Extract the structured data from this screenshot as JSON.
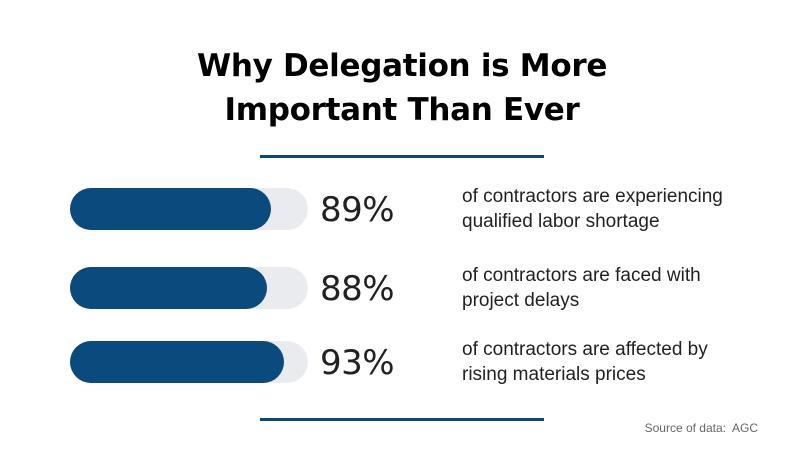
{
  "title": {
    "line1": "Why Delegation is More",
    "line2": "Important Than Ever"
  },
  "chart_data": {
    "type": "bar",
    "title": "Why Delegation is More Important Than Ever",
    "categories": [
      "of contractors are experiencing qualified labor shortage",
      "of contractors are faced with project delays",
      "of contractors are affected by rising materials prices"
    ],
    "values": [
      89,
      88,
      93
    ],
    "labels": [
      "89%",
      "88%",
      "93%"
    ],
    "ylim": [
      0,
      100
    ],
    "orientation": "horizontal",
    "grid": false
  },
  "stats": [
    {
      "value": 89,
      "label": "89%",
      "line1": "of contractors are experiencing",
      "line2": "qualified labor shortage"
    },
    {
      "value": 88,
      "label": "88%",
      "line1": "of contractors are faced with",
      "line2": "project delays"
    },
    {
      "value": 93,
      "label": "93%",
      "line1": "of contractors are affected by",
      "line2": "rising materials prices"
    }
  ],
  "source": "Source of data:  AGC",
  "colors": {
    "bar_fill": "#0a4a7d",
    "bar_track": "#e9ebee",
    "rule": "#0a4a78",
    "text": "#222222"
  }
}
